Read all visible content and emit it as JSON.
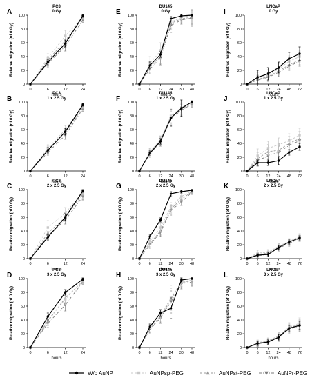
{
  "figure": {
    "legend": [
      {
        "label": "W/o AuNP",
        "color": "#000000",
        "marker": "circle",
        "dash": "solid"
      },
      {
        "label": "AuNPsp-PEG",
        "color": "#c8c8c8",
        "marker": "square",
        "dash": "dashed"
      },
      {
        "label": "AuNPst-PEG",
        "color": "#9a9a9a",
        "marker": "triangle",
        "dash": "dashed"
      },
      {
        "label": "AuNPr-PEG",
        "color": "#7a7a7a",
        "marker": "triangle-down",
        "dash": "dashdot"
      }
    ]
  },
  "chart_data": [
    {
      "type": "line",
      "panel": "A",
      "title": "PC3",
      "subtitle": "0 Gy",
      "xlabel": "hours",
      "ylabel": "Relative migration (of 0 Gy)",
      "ylim": [
        0,
        100
      ],
      "yticks": [
        0,
        20,
        40,
        60,
        80,
        100
      ],
      "categories": [
        "0",
        "6",
        "12",
        "24"
      ],
      "series": [
        {
          "name": "W/o AuNP",
          "values": [
            0,
            32,
            59,
            99
          ],
          "err": [
            0,
            4,
            5,
            2
          ]
        },
        {
          "name": "AuNPsp-PEG",
          "values": [
            0,
            38,
            70,
            97
          ],
          "err": [
            0,
            6,
            8,
            3
          ]
        },
        {
          "name": "AuNPst-PEG",
          "values": [
            0,
            35,
            63,
            96
          ],
          "err": [
            0,
            5,
            7,
            3
          ]
        },
        {
          "name": "AuNPr-PEG",
          "values": [
            0,
            30,
            55,
            93
          ],
          "err": [
            0,
            5,
            7,
            4
          ]
        }
      ]
    },
    {
      "type": "line",
      "panel": "B",
      "title": "PC3",
      "subtitle": "1 x 2.5 Gy",
      "xlabel": "hours",
      "ylabel": "Relative migration (of 0 Gy)",
      "ylim": [
        0,
        100
      ],
      "yticks": [
        0,
        20,
        40,
        60,
        80,
        100
      ],
      "categories": [
        "0",
        "6",
        "12",
        "24"
      ],
      "series": [
        {
          "name": "W/o AuNP",
          "values": [
            0,
            30,
            57,
            96
          ],
          "err": [
            0,
            4,
            5,
            2
          ]
        },
        {
          "name": "AuNPsp-PEG",
          "values": [
            0,
            33,
            60,
            94
          ],
          "err": [
            0,
            5,
            6,
            3
          ]
        },
        {
          "name": "AuNPst-PEG",
          "values": [
            0,
            31,
            56,
            92
          ],
          "err": [
            0,
            5,
            6,
            3
          ]
        },
        {
          "name": "AuNPr-PEG",
          "values": [
            0,
            27,
            52,
            90
          ],
          "err": [
            0,
            4,
            6,
            4
          ]
        }
      ]
    },
    {
      "type": "line",
      "panel": "C",
      "title": "PC3",
      "subtitle": "2 x 2.5 Gy",
      "xlabel": "hours",
      "ylabel": "Relative migration (of 0 Gy)",
      "ylim": [
        0,
        100
      ],
      "yticks": [
        0,
        20,
        40,
        60,
        80,
        100
      ],
      "categories": [
        "0",
        "6",
        "12",
        "24"
      ],
      "series": [
        {
          "name": "W/o AuNP",
          "values": [
            0,
            31,
            60,
            98
          ],
          "err": [
            0,
            4,
            5,
            2
          ]
        },
        {
          "name": "AuNPsp-PEG",
          "values": [
            0,
            45,
            66,
            96
          ],
          "err": [
            0,
            10,
            8,
            4
          ]
        },
        {
          "name": "AuNPst-PEG",
          "values": [
            0,
            37,
            60,
            94
          ],
          "err": [
            0,
            7,
            6,
            4
          ]
        },
        {
          "name": "AuNPr-PEG",
          "values": [
            0,
            33,
            56,
            90
          ],
          "err": [
            0,
            6,
            6,
            5
          ]
        }
      ]
    },
    {
      "type": "line",
      "panel": "D",
      "title": "PC3",
      "subtitle": "3 x 2.5 Gy",
      "xlabel": "hours",
      "ylabel": "Relative migration (of 0 Gy)",
      "ylim": [
        0,
        100
      ],
      "yticks": [
        0,
        20,
        40,
        60,
        80,
        100
      ],
      "categories": [
        "0",
        "6",
        "12",
        "24"
      ],
      "series": [
        {
          "name": "W/o AuNP",
          "values": [
            0,
            45,
            80,
            99
          ],
          "err": [
            0,
            5,
            4,
            2
          ]
        },
        {
          "name": "AuNPsp-PEG",
          "values": [
            0,
            40,
            70,
            97
          ],
          "err": [
            0,
            6,
            8,
            3
          ]
        },
        {
          "name": "AuNPst-PEG",
          "values": [
            0,
            38,
            72,
            96
          ],
          "err": [
            0,
            6,
            7,
            3
          ]
        },
        {
          "name": "AuNPr-PEG",
          "values": [
            0,
            35,
            62,
            95
          ],
          "err": [
            0,
            6,
            9,
            4
          ]
        }
      ]
    },
    {
      "type": "line",
      "panel": "E",
      "title": "DU145",
      "subtitle": "0 Gy",
      "xlabel": "hours",
      "ylabel": "Relative migration (of 0 Gy)",
      "ylim": [
        0,
        100
      ],
      "yticks": [
        0,
        20,
        40,
        60,
        80,
        100
      ],
      "categories": [
        "0",
        "6",
        "12",
        "24",
        "30",
        "48"
      ],
      "series": [
        {
          "name": "W/o AuNP",
          "values": [
            0,
            27,
            43,
            95,
            99,
            100
          ],
          "err": [
            0,
            5,
            4,
            3,
            2,
            0
          ]
        },
        {
          "name": "AuNPsp-PEG",
          "values": [
            0,
            30,
            48,
            90,
            97,
            100
          ],
          "err": [
            0,
            10,
            12,
            8,
            4,
            0
          ]
        },
        {
          "name": "AuNPst-PEG",
          "values": [
            0,
            25,
            40,
            88,
            95,
            97
          ],
          "err": [
            0,
            8,
            10,
            8,
            5,
            10
          ]
        },
        {
          "name": "AuNPr-PEG",
          "values": [
            0,
            22,
            38,
            85,
            93,
            96
          ],
          "err": [
            0,
            7,
            10,
            10,
            6,
            12
          ]
        }
      ]
    },
    {
      "type": "line",
      "panel": "F",
      "title": "DU145",
      "subtitle": "1 x 2.5 Gy",
      "xlabel": "hours",
      "ylabel": "Relative migration (of 0 Gy)",
      "ylim": [
        0,
        100
      ],
      "yticks": [
        0,
        20,
        40,
        60,
        80,
        100
      ],
      "categories": [
        "0",
        "6",
        "12",
        "24",
        "30",
        "48"
      ],
      "series": [
        {
          "name": "W/o AuNP",
          "values": [
            0,
            26,
            43,
            77,
            91,
            100
          ],
          "err": [
            0,
            3,
            4,
            12,
            12,
            0
          ]
        },
        {
          "name": "AuNPsp-PEG",
          "values": [
            0,
            28,
            45,
            80,
            92,
            100
          ],
          "err": [
            0,
            5,
            6,
            10,
            8,
            0
          ]
        },
        {
          "name": "AuNPst-PEG",
          "values": [
            0,
            27,
            44,
            78,
            90,
            98
          ],
          "err": [
            0,
            5,
            6,
            10,
            8,
            4
          ]
        },
        {
          "name": "AuNPr-PEG",
          "values": [
            0,
            25,
            42,
            76,
            88,
            97
          ],
          "err": [
            0,
            5,
            6,
            10,
            8,
            5
          ]
        }
      ]
    },
    {
      "type": "line",
      "panel": "G",
      "title": "DU145",
      "subtitle": "2 x 2.5 Gy",
      "xlabel": "hours",
      "ylabel": "Relative migration (of 0 Gy)",
      "ylim": [
        0,
        100
      ],
      "yticks": [
        0,
        20,
        40,
        60,
        80,
        100
      ],
      "categories": [
        "0",
        "6",
        "12",
        "24",
        "30",
        "48"
      ],
      "series": [
        {
          "name": "W/o AuNP",
          "values": [
            0,
            32,
            56,
            94,
            97,
            99
          ],
          "err": [
            0,
            3,
            3,
            3,
            2,
            1
          ]
        },
        {
          "name": "AuNPsp-PEG",
          "values": [
            0,
            25,
            45,
            75,
            90,
            98
          ],
          "err": [
            0,
            5,
            6,
            6,
            4,
            2
          ]
        },
        {
          "name": "AuNPst-PEG",
          "values": [
            0,
            22,
            40,
            72,
            86,
            97
          ],
          "err": [
            0,
            5,
            6,
            6,
            5,
            3
          ]
        },
        {
          "name": "AuNPr-PEG",
          "values": [
            0,
            20,
            38,
            70,
            82,
            96
          ],
          "err": [
            0,
            5,
            6,
            7,
            5,
            3
          ]
        }
      ]
    },
    {
      "type": "line",
      "panel": "H",
      "title": "DU145",
      "subtitle": "3 x 2.5 Gy",
      "xlabel": "hours",
      "ylabel": "Relative migration (of 0 Gy)",
      "ylim": [
        0,
        100
      ],
      "yticks": [
        0,
        20,
        40,
        60,
        80,
        100
      ],
      "categories": [
        "0",
        "6",
        "12",
        "24",
        "30",
        "48"
      ],
      "series": [
        {
          "name": "W/o AuNP",
          "values": [
            0,
            30,
            50,
            57,
            98,
            100
          ],
          "err": [
            0,
            4,
            5,
            15,
            3,
            0
          ]
        },
        {
          "name": "AuNPsp-PEG",
          "values": [
            0,
            28,
            46,
            72,
            95,
            98
          ],
          "err": [
            0,
            5,
            8,
            18,
            6,
            4
          ]
        },
        {
          "name": "AuNPst-PEG",
          "values": [
            0,
            27,
            44,
            70,
            94,
            97
          ],
          "err": [
            0,
            5,
            8,
            16,
            6,
            5
          ]
        },
        {
          "name": "AuNPr-PEG",
          "values": [
            0,
            26,
            43,
            66,
            92,
            95
          ],
          "err": [
            0,
            5,
            8,
            16,
            7,
            6
          ]
        }
      ]
    },
    {
      "type": "line",
      "panel": "I",
      "title": "LNCaP",
      "subtitle": "0 Gy",
      "xlabel": "hours",
      "ylabel": "Relative migration (of 0 Gy)",
      "ylim": [
        0,
        100
      ],
      "yticks": [
        0,
        20,
        40,
        60,
        80,
        100
      ],
      "categories": [
        "0",
        "6",
        "12",
        "24",
        "48",
        "72"
      ],
      "series": [
        {
          "name": "W/o AuNP",
          "values": [
            0,
            10,
            15,
            24,
            37,
            44
          ],
          "err": [
            0,
            10,
            9,
            8,
            9,
            10
          ]
        },
        {
          "name": "AuNPsp-PEG",
          "values": [
            0,
            9,
            13,
            22,
            33,
            40
          ],
          "err": [
            0,
            8,
            8,
            8,
            8,
            8
          ]
        },
        {
          "name": "AuNPst-PEG",
          "values": [
            0,
            7,
            11,
            19,
            28,
            35
          ],
          "err": [
            0,
            6,
            6,
            6,
            6,
            7
          ]
        },
        {
          "name": "AuNPr-PEG",
          "values": [
            0,
            6,
            10,
            17,
            26,
            33
          ],
          "err": [
            0,
            6,
            6,
            6,
            6,
            7
          ]
        }
      ]
    },
    {
      "type": "line",
      "panel": "J",
      "title": "LNCaP",
      "subtitle": "1 x 2.5 Gy",
      "xlabel": "hours",
      "ylabel": "Relative migration (of 0 Gy)",
      "ylim": [
        0,
        100
      ],
      "yticks": [
        0,
        20,
        40,
        60,
        80,
        100
      ],
      "categories": [
        "0",
        "6",
        "12",
        "24",
        "48",
        "72"
      ],
      "series": [
        {
          "name": "W/o AuNP",
          "values": [
            0,
            12,
            12,
            15,
            27,
            35
          ],
          "err": [
            0,
            4,
            4,
            6,
            4,
            5
          ]
        },
        {
          "name": "AuNPsp-PEG",
          "values": [
            0,
            22,
            33,
            38,
            44,
            52
          ],
          "err": [
            0,
            10,
            10,
            10,
            10,
            10
          ]
        },
        {
          "name": "AuNPst-PEG",
          "values": [
            0,
            18,
            28,
            30,
            40,
            47
          ],
          "err": [
            0,
            9,
            10,
            10,
            10,
            10
          ]
        },
        {
          "name": "AuNPr-PEG",
          "values": [
            0,
            15,
            22,
            27,
            37,
            44
          ],
          "err": [
            0,
            8,
            9,
            9,
            9,
            9
          ]
        }
      ]
    },
    {
      "type": "line",
      "panel": "K",
      "title": "LNCaP",
      "subtitle": "2 x 2.5 Gy",
      "xlabel": "hours",
      "ylabel": "Relative migration (of 0 Gy)",
      "ylim": [
        0,
        100
      ],
      "yticks": [
        0,
        20,
        40,
        60,
        80,
        100
      ],
      "categories": [
        "0",
        "6",
        "12",
        "24",
        "48",
        "72"
      ],
      "series": [
        {
          "name": "W/o AuNP",
          "values": [
            0,
            5,
            6,
            16,
            24,
            30
          ],
          "err": [
            0,
            2,
            3,
            3,
            3,
            3
          ]
        },
        {
          "name": "AuNPsp-PEG",
          "values": [
            0,
            8,
            9,
            18,
            25,
            32
          ],
          "err": [
            0,
            4,
            4,
            4,
            4,
            4
          ]
        },
        {
          "name": "AuNPst-PEG",
          "values": [
            0,
            6,
            8,
            17,
            24,
            31
          ],
          "err": [
            0,
            3,
            3,
            4,
            4,
            4
          ]
        },
        {
          "name": "AuNPr-PEG",
          "values": [
            0,
            4,
            6,
            15,
            22,
            29
          ],
          "err": [
            0,
            3,
            3,
            4,
            4,
            4
          ]
        }
      ]
    },
    {
      "type": "line",
      "panel": "L",
      "title": "LNCaP",
      "subtitle": "3 x 2.5 Gy",
      "xlabel": "hours",
      "ylabel": "Relative migration (of 0 Gy)",
      "ylim": [
        0,
        100
      ],
      "yticks": [
        0,
        20,
        40,
        60,
        80,
        100
      ],
      "categories": [
        "0",
        "6",
        "12",
        "24",
        "48",
        "72"
      ],
      "series": [
        {
          "name": "W/o AuNP",
          "values": [
            0,
            6,
            8,
            15,
            28,
            32
          ],
          "err": [
            0,
            3,
            3,
            4,
            4,
            6
          ]
        },
        {
          "name": "AuNPsp-PEG",
          "values": [
            0,
            7,
            10,
            17,
            30,
            35
          ],
          "err": [
            0,
            4,
            4,
            5,
            6,
            8
          ]
        },
        {
          "name": "AuNPst-PEG",
          "values": [
            0,
            6,
            9,
            16,
            29,
            33
          ],
          "err": [
            0,
            4,
            4,
            5,
            6,
            8
          ]
        },
        {
          "name": "AuNPr-PEG",
          "values": [
            0,
            5,
            8,
            14,
            27,
            31
          ],
          "err": [
            0,
            4,
            4,
            5,
            6,
            8
          ]
        }
      ]
    }
  ]
}
